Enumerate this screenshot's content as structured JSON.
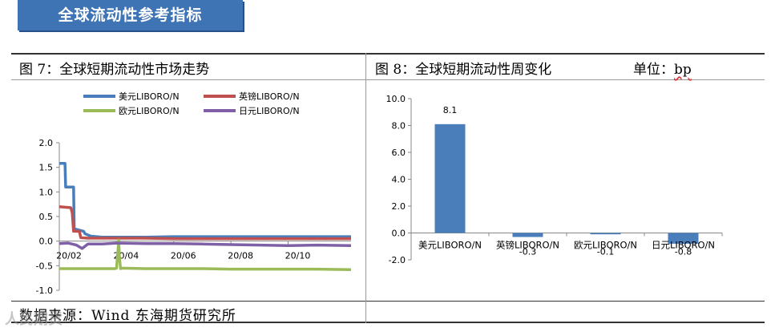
{
  "banner": {
    "title": "全球流动性参考指标"
  },
  "left_figure": {
    "title": "图 7：全球短期流动性市场走势"
  },
  "right_figure": {
    "title": "图 8：全球短期流动性周变化",
    "unit_label": "单位：",
    "unit_value": "bp"
  },
  "source": "数据来源：Wind   东海期货研究所",
  "watermark": "人民期货",
  "colors": {
    "usd": "#4a7ebb",
    "gbp": "#c0504d",
    "eur": "#9bbb59",
    "jpy": "#7f60a6",
    "banner": "#3f74b4"
  },
  "chart_data": [
    {
      "type": "line",
      "legend_placement": "top",
      "ylim": [
        -1.0,
        2.0
      ],
      "yticks": [
        "2.0",
        "1.5",
        "1.0",
        "0.5",
        "0.0",
        "-0.5",
        "-1.0"
      ],
      "ytick_values": [
        2.0,
        1.5,
        1.0,
        0.5,
        0.0,
        -0.5,
        -1.0
      ],
      "xticks": [
        "20/02",
        "20/04",
        "20/06",
        "20/08",
        "20/10"
      ],
      "xtick_values": [
        0,
        2,
        4,
        6,
        8
      ],
      "xlim": [
        0,
        10.2
      ],
      "series": [
        {
          "name": "美元LIBORO/N",
          "color": "#4a7ebb",
          "x": [
            0,
            0.2,
            0.22,
            0.5,
            0.52,
            0.85,
            0.9,
            1.1,
            1.5,
            2,
            3,
            4,
            5,
            6,
            7,
            8,
            9,
            10.2
          ],
          "y": [
            1.58,
            1.58,
            1.1,
            1.1,
            0.25,
            0.2,
            0.15,
            0.1,
            0.08,
            0.08,
            0.08,
            0.09,
            0.09,
            0.09,
            0.09,
            0.09,
            0.09,
            0.09
          ]
        },
        {
          "name": "英镑LIBORO/N",
          "color": "#c0504d",
          "x": [
            0,
            0.4,
            0.45,
            0.5,
            0.55,
            0.7,
            0.75,
            1,
            2,
            3,
            4,
            5,
            6,
            7,
            8,
            9,
            10.2
          ],
          "y": [
            0.7,
            0.68,
            0.58,
            0.2,
            0.2,
            0.2,
            0.07,
            0.06,
            0.06,
            0.06,
            0.05,
            0.05,
            0.05,
            0.05,
            0.05,
            0.05,
            0.05
          ]
        },
        {
          "name": "欧元LIBORO/N",
          "color": "#9bbb59",
          "x": [
            0,
            1,
            1.95,
            2.0,
            2.08,
            2.1,
            2.14,
            2.2,
            3,
            4,
            5,
            6,
            7,
            8,
            9,
            10.2
          ],
          "y": [
            -0.56,
            -0.56,
            -0.56,
            -0.55,
            0.02,
            -0.3,
            -0.56,
            -0.55,
            -0.56,
            -0.56,
            -0.56,
            -0.57,
            -0.57,
            -0.57,
            -0.57,
            -0.58
          ]
        },
        {
          "name": "日元LIBORO/N",
          "color": "#7f60a6",
          "x": [
            0,
            0.3,
            0.6,
            0.8,
            1,
            1.5,
            2,
            3,
            4,
            5,
            6,
            7,
            8,
            9,
            10.2
          ],
          "y": [
            -0.05,
            -0.04,
            -0.08,
            -0.15,
            -0.06,
            -0.06,
            -0.04,
            -0.05,
            -0.05,
            -0.06,
            -0.07,
            -0.08,
            -0.09,
            -0.08,
            -0.09
          ]
        }
      ]
    },
    {
      "type": "bar",
      "ylim": [
        -2.0,
        10.0
      ],
      "yticks": [
        "10.0",
        "8.0",
        "6.0",
        "4.0",
        "2.0",
        "0.0",
        "-2.0"
      ],
      "ytick_values": [
        10,
        8,
        6,
        4,
        2,
        0,
        -2
      ],
      "categories": [
        "美元LIBORO/N",
        "英镑LIBORO/N",
        "欧元LIBORO/N",
        "日元LIBORO/N"
      ],
      "values": [
        8.1,
        -0.3,
        -0.1,
        -0.8
      ],
      "data_labels": [
        "8.1",
        "-0.3",
        "-0.1",
        "-0.8"
      ],
      "color": "#4a7ebb"
    }
  ]
}
